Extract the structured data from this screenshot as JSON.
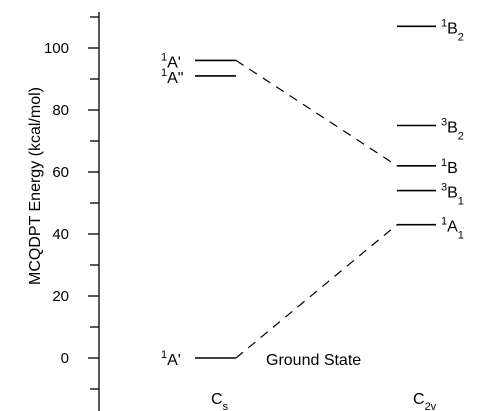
{
  "chart_data": {
    "type": "energy-level diagram",
    "ylabel": "MCQDPT Energy (kcal/mol)",
    "ylim": [
      -10,
      110
    ],
    "yticks": [
      0,
      20,
      40,
      60,
      80,
      100
    ],
    "minor_step": 10,
    "columns": [
      {
        "symmetry": {
          "main": "C",
          "sub": "s"
        }
      },
      {
        "symmetry": {
          "main": "C",
          "sub": "2v"
        }
      }
    ],
    "levels": [
      {
        "column": 0,
        "energy": 96,
        "label": {
          "sup": "1",
          "main": "A'",
          "sub": ""
        }
      },
      {
        "column": 0,
        "energy": 91,
        "label": {
          "sup": "1",
          "main": "A\"",
          "sub": ""
        }
      },
      {
        "column": 0,
        "energy": 0,
        "label": {
          "sup": "1",
          "main": "A'",
          "sub": ""
        },
        "annotation": "Ground State"
      },
      {
        "column": 1,
        "energy": 107,
        "label": {
          "sup": "1",
          "main": "B",
          "sub": "2"
        }
      },
      {
        "column": 1,
        "energy": 75,
        "label": {
          "sup": "3",
          "main": "B",
          "sub": "2"
        }
      },
      {
        "column": 1,
        "energy": 62,
        "label": {
          "sup": "1",
          "main": "B",
          "sub": ""
        }
      },
      {
        "column": 1,
        "energy": 54,
        "label": {
          "sup": "3",
          "main": "B",
          "sub": "1"
        }
      },
      {
        "column": 1,
        "energy": 43,
        "label": {
          "sup": "1",
          "main": "A",
          "sub": "1"
        }
      }
    ],
    "connections": [
      {
        "from": 0,
        "to": 5
      },
      {
        "from": 2,
        "to": 7
      }
    ]
  }
}
